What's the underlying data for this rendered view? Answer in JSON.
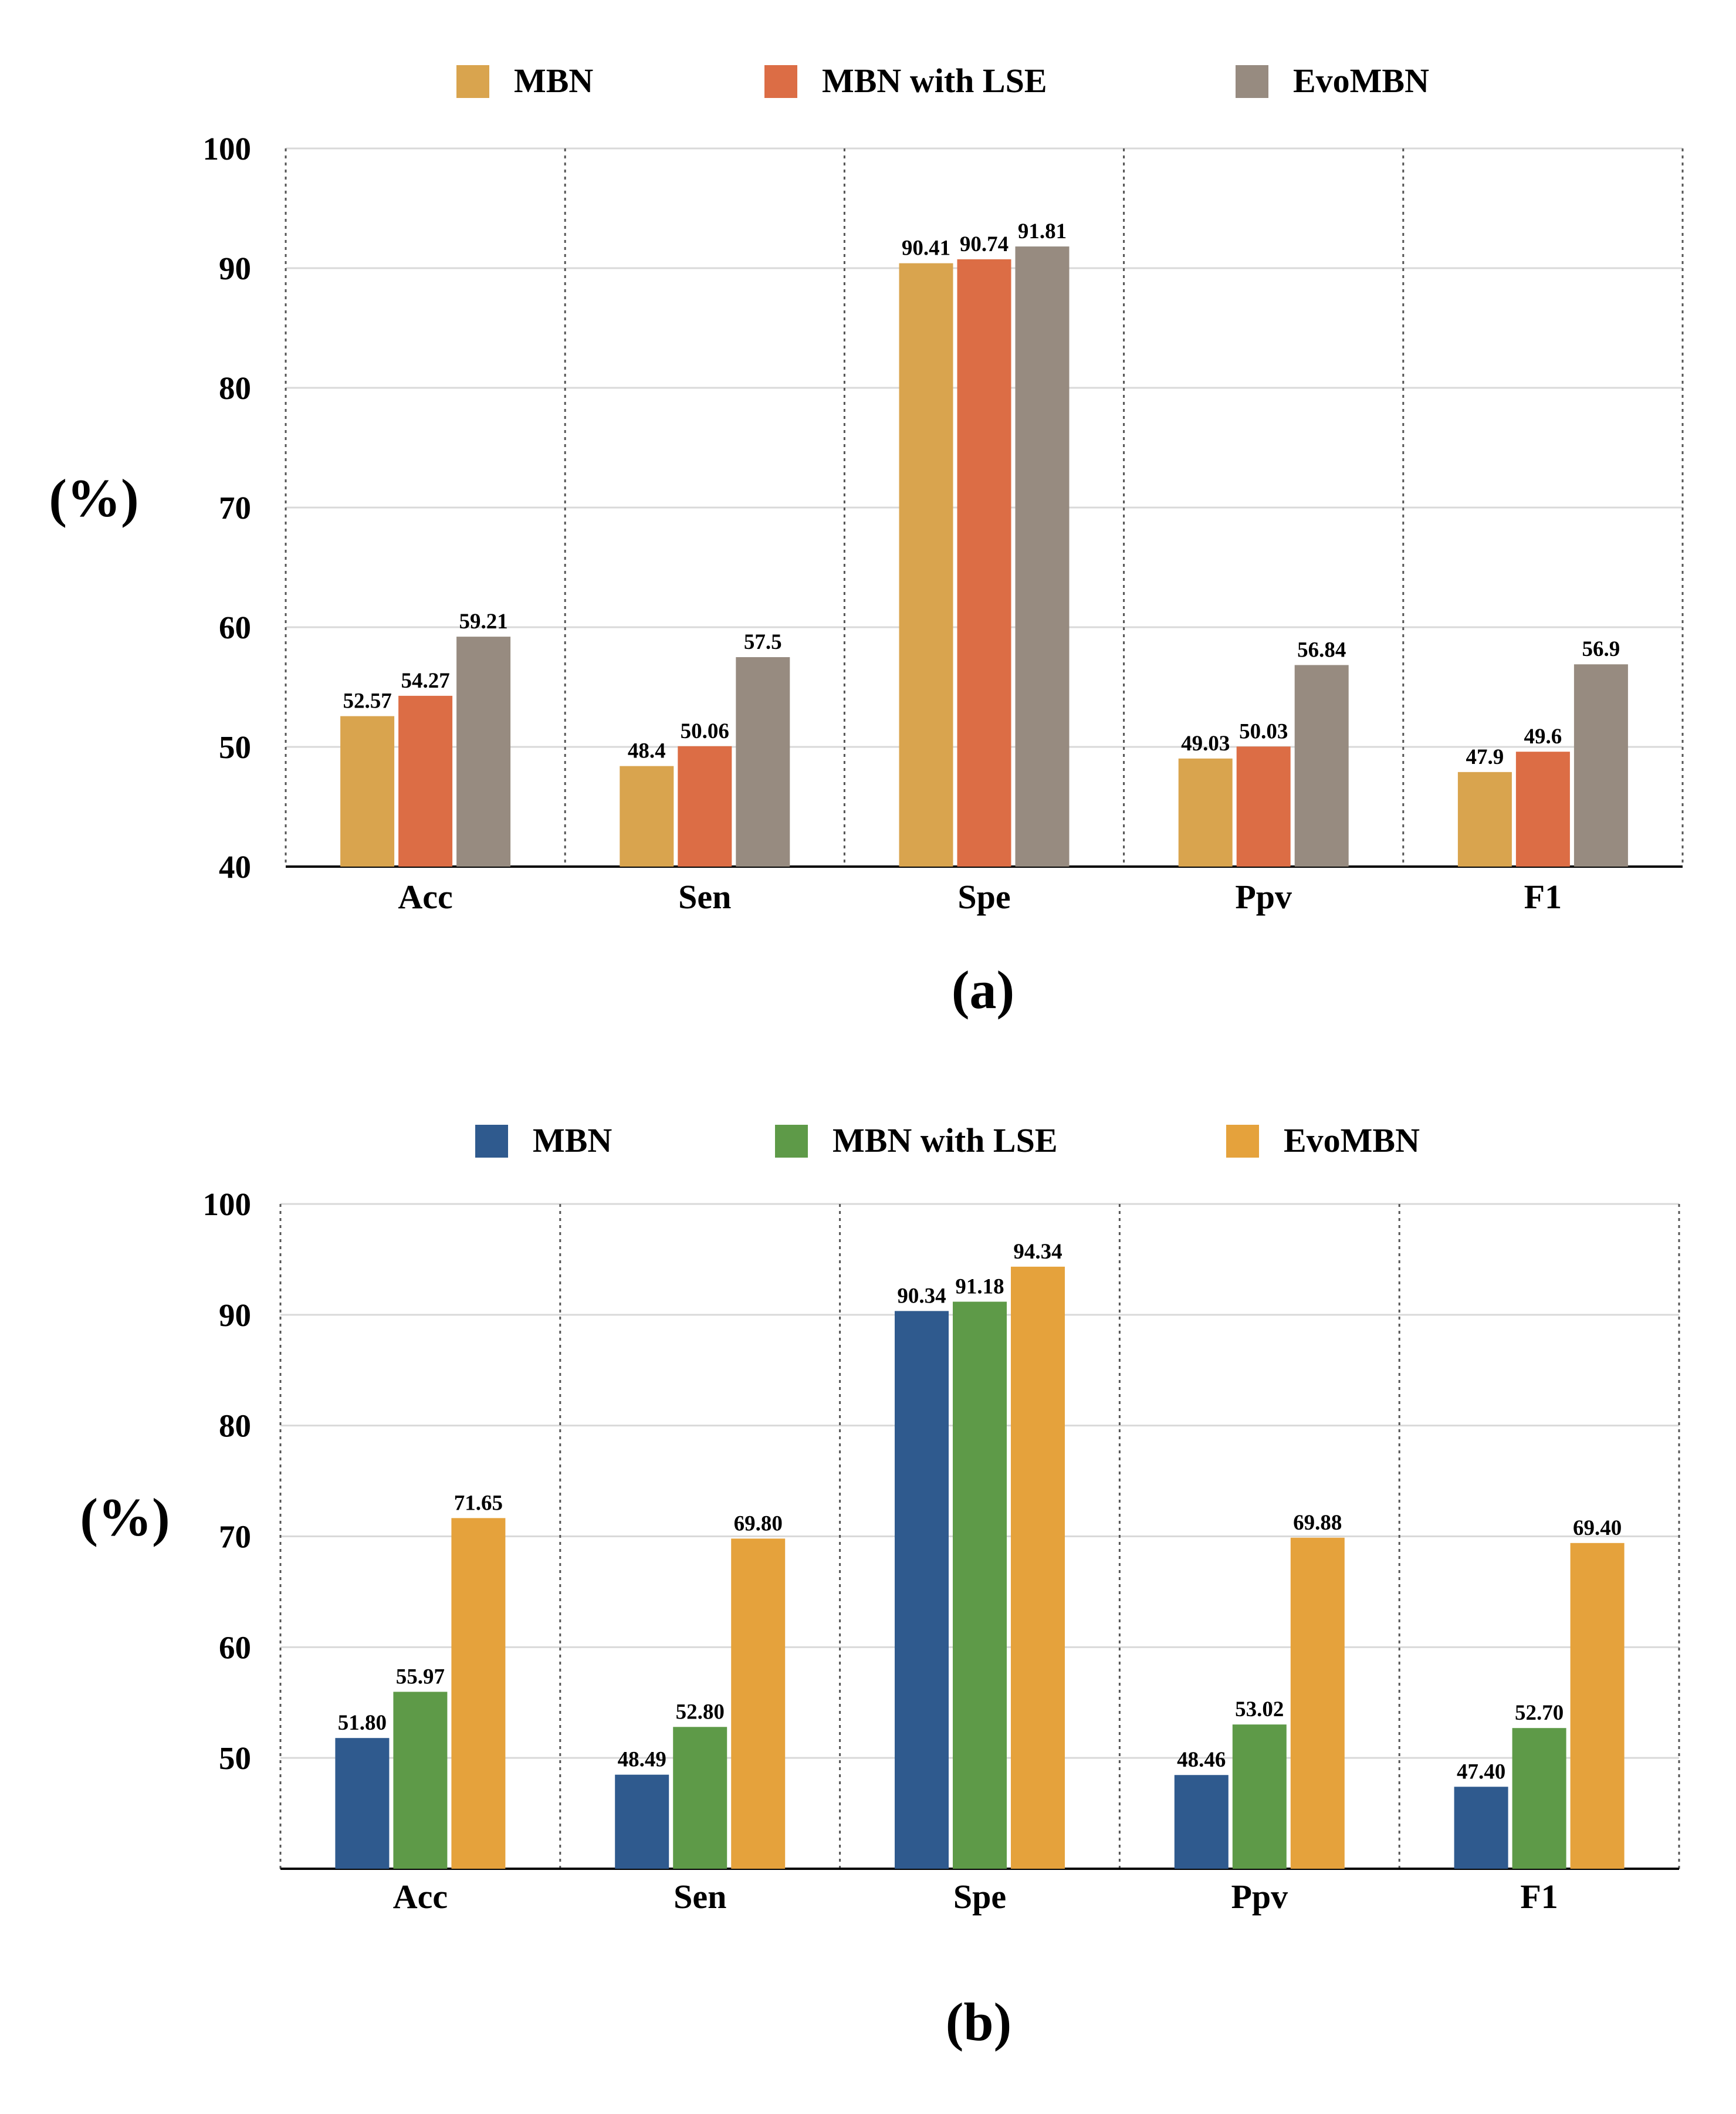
{
  "chart_data": [
    {
      "type": "bar",
      "panel_label": "(a)",
      "ylabel": "(%)",
      "xlabel": "",
      "ylim": [
        40,
        100
      ],
      "yticks": [
        40,
        50,
        60,
        70,
        80,
        90,
        100
      ],
      "categories": [
        "Acc",
        "Sen",
        "Spe",
        "Ppv",
        "F1"
      ],
      "legend_position": "top-center",
      "grid": true,
      "series": [
        {
          "name": "MBN",
          "color": "#D9A44E",
          "values": [
            52.57,
            48.4,
            90.41,
            49.03,
            47.9
          ],
          "labels": [
            "52.57",
            "48.4",
            "90.41",
            "49.03",
            "47.9"
          ]
        },
        {
          "name": "MBN with LSE",
          "color": "#DC6D45",
          "values": [
            54.27,
            50.06,
            90.74,
            50.03,
            49.6
          ],
          "labels": [
            "54.27",
            "50.06",
            "90.74",
            "50.03",
            "49.6"
          ]
        },
        {
          "name": "EvoMBN",
          "color": "#978B80",
          "values": [
            59.21,
            57.5,
            91.81,
            56.84,
            56.9
          ],
          "labels": [
            "59.21",
            "57.5",
            "91.81",
            "56.84",
            "56.9"
          ]
        }
      ]
    },
    {
      "type": "bar",
      "panel_label": "(b)",
      "ylabel": "(%)",
      "xlabel": "",
      "ylim": [
        40,
        100
      ],
      "yticks": [
        50,
        60,
        70,
        80,
        90,
        100
      ],
      "categories": [
        "Acc",
        "Sen",
        "Spe",
        "Ppv",
        "F1"
      ],
      "legend_position": "top-center",
      "grid": true,
      "series": [
        {
          "name": "MBN",
          "color": "#2F5A8E",
          "values": [
            51.8,
            48.49,
            90.34,
            48.46,
            47.4
          ],
          "labels": [
            "51.80",
            "48.49",
            "90.34",
            "48.46",
            "47.40"
          ]
        },
        {
          "name": "MBN with LSE",
          "color": "#5E9A48",
          "values": [
            55.97,
            52.8,
            91.18,
            53.02,
            52.7
          ],
          "labels": [
            "55.97",
            "52.80",
            "91.18",
            "53.02",
            "52.70"
          ]
        },
        {
          "name": "EvoMBN",
          "color": "#E5A23C",
          "values": [
            71.65,
            69.8,
            94.34,
            69.88,
            69.4
          ],
          "labels": [
            "71.65",
            "69.80",
            "94.34",
            "69.88",
            "69.40"
          ]
        }
      ]
    }
  ]
}
